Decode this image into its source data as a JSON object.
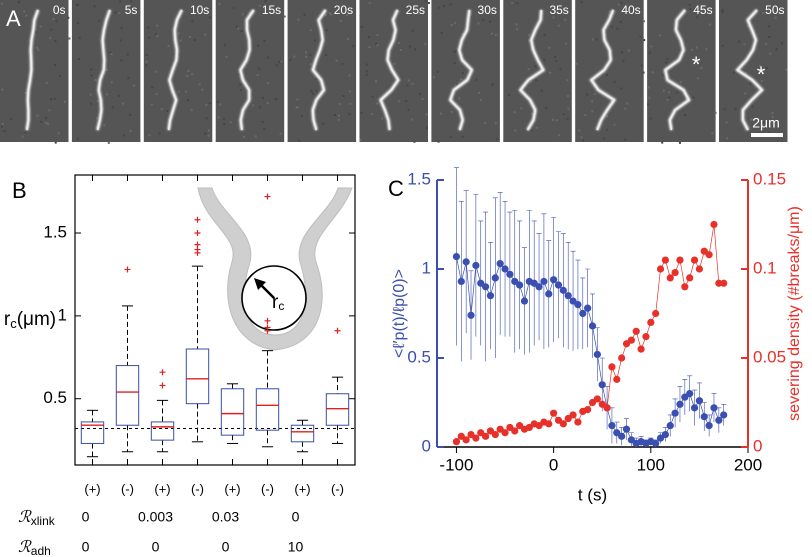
{
  "panel_labels": {
    "a": "A",
    "b": "B",
    "c": "C"
  },
  "image_strip": {
    "frames": [
      "0s",
      "5s",
      "10s",
      "15s",
      "20s",
      "25s",
      "30s",
      "35s",
      "40s",
      "45s",
      "50s"
    ],
    "markers": [
      "*",
      "*"
    ],
    "scale_bar": "2μm"
  },
  "chart_data": [
    {
      "type": "box",
      "ylabel": {
        "main": "r",
        "sub": "c",
        "unit": "(μm)"
      },
      "ylim": [
        0.1,
        1.85
      ],
      "yticks": [
        0.5,
        1,
        1.5
      ],
      "reference_line": 0.32,
      "box_color": "#3a4fa0",
      "median_color": "#e02020",
      "outlier_color": "#e02020",
      "inset_label": {
        "main": "r",
        "sub": "c"
      },
      "categories": [
        "(+)",
        "(-)",
        "(+)",
        "(-)",
        "(+)",
        "(-)",
        "(+)",
        "(-)"
      ],
      "boxes": [
        {
          "whisker_low": 0.15,
          "q1": 0.23,
          "median": 0.34,
          "q3": 0.36,
          "whisker_high": 0.43,
          "outliers": []
        },
        {
          "whisker_low": 0.18,
          "q1": 0.34,
          "median": 0.54,
          "q3": 0.7,
          "whisker_high": 1.06,
          "outliers": [
            1.28
          ]
        },
        {
          "whisker_low": 0.18,
          "q1": 0.25,
          "median": 0.33,
          "q3": 0.36,
          "whisker_high": 0.49,
          "outliers": [
            0.58,
            0.66
          ]
        },
        {
          "whisker_low": 0.24,
          "q1": 0.47,
          "median": 0.62,
          "q3": 0.8,
          "whisker_high": 1.3,
          "outliers": [
            1.38,
            1.4,
            1.43,
            1.5,
            1.58
          ]
        },
        {
          "whisker_low": 0.23,
          "q1": 0.28,
          "median": 0.41,
          "q3": 0.56,
          "whisker_high": 0.59,
          "outliers": []
        },
        {
          "whisker_low": 0.21,
          "q1": 0.31,
          "median": 0.46,
          "q3": 0.56,
          "whisker_high": 0.79,
          "outliers": [
            0.91,
            0.93,
            0.97,
            1.72
          ]
        },
        {
          "whisker_low": 0.18,
          "q1": 0.24,
          "median": 0.3,
          "q3": 0.34,
          "whisker_high": 0.37,
          "outliers": []
        },
        {
          "whisker_low": 0.23,
          "q1": 0.34,
          "median": 0.44,
          "q3": 0.53,
          "whisker_high": 0.63,
          "outliers": [
            0.91
          ]
        }
      ],
      "parameter_rows": [
        {
          "symbol": "ℛ",
          "sub": "xlink",
          "values": [
            "0",
            "0.003",
            "0.03",
            "0"
          ]
        },
        {
          "symbol": "ℛ",
          "sub": "adh",
          "values": [
            "0",
            "0",
            "0",
            "10"
          ]
        }
      ]
    },
    {
      "type": "dual_axis_scatter",
      "xlabel": "t (s)",
      "ylabel": "<ℓ′p(t)/ℓp(0)>",
      "y2label": "severing density (#breaks/μm)",
      "xlim": [
        -120,
        200
      ],
      "xticks": [
        -100,
        0,
        100,
        200
      ],
      "ylim": [
        0,
        1.5
      ],
      "yticks": [
        0,
        0.5,
        1,
        1.5
      ],
      "y2lim": [
        0,
        0.15
      ],
      "y2ticks": [
        0,
        0.05,
        0.1,
        0.15
      ],
      "x": [
        -100,
        -95,
        -90,
        -85,
        -80,
        -75,
        -70,
        -65,
        -60,
        -55,
        -50,
        -45,
        -40,
        -35,
        -30,
        -25,
        -20,
        -15,
        -10,
        -5,
        0,
        5,
        10,
        15,
        20,
        25,
        30,
        35,
        40,
        45,
        50,
        55,
        60,
        65,
        70,
        75,
        80,
        85,
        90,
        95,
        100,
        105,
        110,
        115,
        120,
        125,
        130,
        135,
        140,
        145,
        150,
        155,
        160,
        165,
        170,
        175
      ],
      "series": [
        {
          "color": "#3a4fb0",
          "axis": "y",
          "values": [
            1.07,
            0.93,
            1.04,
            0.74,
            1.02,
            0.92,
            0.9,
            0.85,
            0.95,
            1.03,
            1.0,
            0.97,
            0.93,
            0.91,
            0.82,
            0.93,
            0.92,
            0.9,
            0.93,
            0.86,
            0.94,
            0.91,
            0.88,
            0.85,
            0.82,
            0.8,
            0.75,
            0.78,
            0.68,
            0.52,
            0.35,
            0.22,
            0.12,
            0.08,
            0.06,
            0.1,
            0.04,
            0.02,
            0.03,
            0.02,
            0.03,
            0.02,
            0.05,
            0.07,
            0.12,
            0.19,
            0.24,
            0.28,
            0.3,
            0.22,
            0.26,
            0.17,
            0.12,
            0.22,
            0.15,
            0.18
          ],
          "errors": [
            0.5,
            0.45,
            0.4,
            0.25,
            0.4,
            0.35,
            0.42,
            0.3,
            0.45,
            0.4,
            0.38,
            0.35,
            0.4,
            0.36,
            0.3,
            0.4,
            0.35,
            0.3,
            0.38,
            0.3,
            0.35,
            0.3,
            0.32,
            0.3,
            0.28,
            0.25,
            0.2,
            0.22,
            0.18,
            0.15,
            0.15,
            0.12,
            0.1,
            0.06,
            0.05,
            0.06,
            0.04,
            0.03,
            0.03,
            0.02,
            0.02,
            0.02,
            0.03,
            0.04,
            0.06,
            0.08,
            0.1,
            0.1,
            0.1,
            0.1,
            0.1,
            0.08,
            0.06,
            0.08,
            0.07,
            0.06
          ]
        },
        {
          "color": "#e8302a",
          "axis": "y2",
          "values": [
            0.003,
            0.006,
            0.004,
            0.007,
            0.005,
            0.008,
            0.006,
            0.009,
            0.007,
            0.01,
            0.008,
            0.011,
            0.009,
            0.012,
            0.01,
            0.011,
            0.013,
            0.012,
            0.014,
            0.013,
            0.019,
            0.015,
            0.013,
            0.016,
            0.018,
            0.014,
            0.02,
            0.021,
            0.025,
            0.027,
            0.024,
            0.022,
            0.045,
            0.038,
            0.05,
            0.058,
            0.06,
            0.065,
            0.055,
            0.062,
            0.07,
            0.075,
            0.1,
            0.105,
            0.095,
            0.098,
            0.105,
            0.09,
            0.095,
            0.105,
            0.1,
            0.11,
            0.108,
            0.125,
            0.092,
            0.092
          ]
        }
      ]
    }
  ]
}
